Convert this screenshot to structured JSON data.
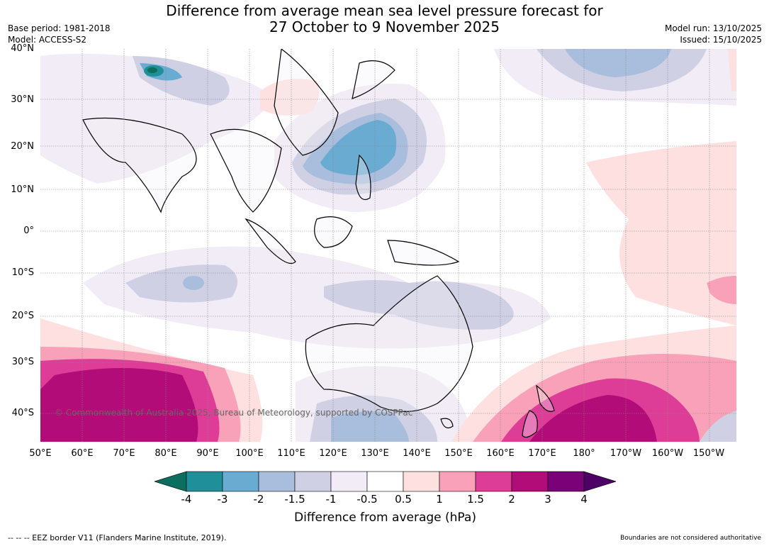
{
  "title": {
    "line1": "Difference from average mean sea level pressure forecast for",
    "line2": "27 October to 9 November 2025"
  },
  "meta_left": {
    "base_period": "Base period: 1981-2018",
    "model": "Model: ACCESS-S2"
  },
  "meta_right": {
    "model_run": "Model run: 13/10/2025",
    "issued": "Issued: 15/10/2025"
  },
  "map": {
    "copyright": "© Commonwealth of Australia 2025, Bureau of Meteorology, supported by COSPPac",
    "lat_labels": [
      "40°N",
      "30°N",
      "20°N",
      "10°N",
      "0°",
      "10°S",
      "20°S",
      "30°S",
      "40°S"
    ],
    "lon_labels": [
      "50°E",
      "60°E",
      "70°E",
      "80°E",
      "90°E",
      "100°E",
      "110°E",
      "120°E",
      "130°E",
      "140°E",
      "150°E",
      "160°E",
      "170°E",
      "180°",
      "170°W",
      "160°W",
      "150°W"
    ]
  },
  "colorbar": {
    "title": "Difference from average (hPa)",
    "ticks": [
      "-4",
      "-3",
      "-2",
      "-1.5",
      "-1",
      "-0.5",
      "0.5",
      "1",
      "1.5",
      "2",
      "3",
      "4"
    ],
    "colors": [
      "#0b6e5e",
      "#1f8f99",
      "#6aabd2",
      "#a9bedc",
      "#cfd0e4",
      "#f1ecf5",
      "#ffffff",
      "#fde0df",
      "#f8a1b8",
      "#de3d97",
      "#b10c78",
      "#7a0177",
      "#4d0066"
    ]
  },
  "footer": {
    "eez": "--  --  -- EEZ border V11 (Flanders Marine Institute, 2019).",
    "disclaimer": "Boundaries are not considered authoritative"
  }
}
